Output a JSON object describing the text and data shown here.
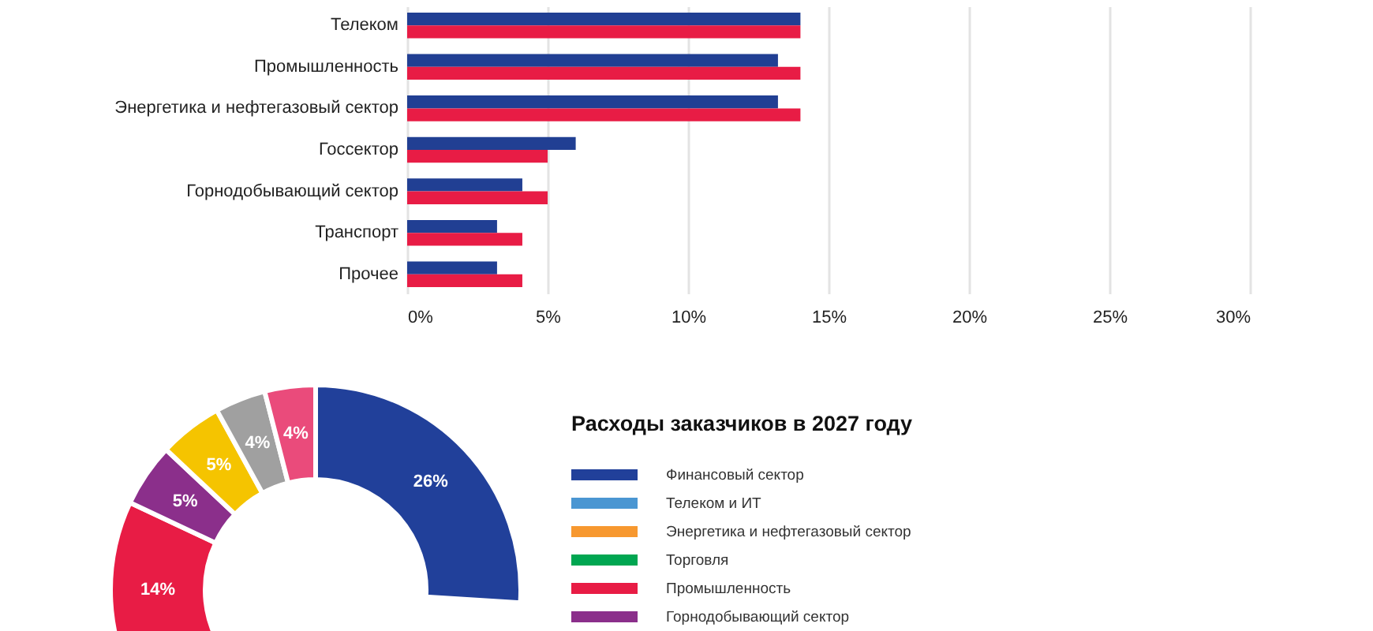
{
  "chart_data": [
    {
      "type": "bar",
      "orientation": "horizontal",
      "categories": [
        "Телеком",
        "Промышленность",
        "Энергетика и нефтегазовый сектор",
        "Госсектор",
        "Горнодобывающий сектор",
        "Транспорт",
        "Прочее"
      ],
      "series": [
        {
          "color": "#213f93",
          "values": [
            14,
            13.2,
            13.2,
            6,
            4.1,
            3.2,
            3.2
          ]
        },
        {
          "color": "#e81c45",
          "values": [
            14,
            14,
            14,
            5,
            5,
            4.1,
            4.1
          ]
        }
      ],
      "xlim": [
        0,
        30
      ],
      "xticks": [
        {
          "value": 0,
          "label": "0%"
        },
        {
          "value": 5,
          "label": "5%"
        },
        {
          "value": 10,
          "label": "10%"
        },
        {
          "value": 15,
          "label": "15%"
        },
        {
          "value": 20,
          "label": "20%"
        },
        {
          "value": 25,
          "label": "25%"
        },
        {
          "value": 30,
          "label": "30%"
        }
      ],
      "grid": "x",
      "legend": false
    },
    {
      "type": "donut",
      "title": "Расходы заказчиков в 2027 году",
      "categories": [
        "Финансовый сектор",
        "Телеком и ИТ",
        "Энергетика и нефтегазовый сектор",
        "Торговля",
        "Промышленность",
        "Горнодобывающий сектор",
        null,
        null,
        null
      ],
      "values": [
        26,
        null,
        null,
        null,
        14,
        5,
        5,
        4,
        4
      ],
      "colors": [
        "#21409a",
        "#4a96d2",
        "#f7982f",
        "#00a651",
        "#e81c45",
        "#8b2f8b",
        "#f5c400",
        "#a0a0a0",
        "#ea4b7b"
      ],
      "value_labels": [
        "26%",
        null,
        null,
        null,
        "14%",
        "5%",
        "5%",
        "4%",
        "4%"
      ],
      "legend": "right"
    }
  ]
}
